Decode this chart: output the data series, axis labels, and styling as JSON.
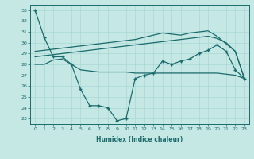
{
  "xlabel": "Humidex (Indice chaleur)",
  "ylabel": "",
  "background_color": "#c5e8e5",
  "line_color": "#1a6b6b",
  "grid_color": "#a8d8d4",
  "xlim": [
    -0.5,
    23.5
  ],
  "ylim": [
    22.5,
    33.5
  ],
  "yticks": [
    23,
    24,
    25,
    26,
    27,
    28,
    29,
    30,
    31,
    32,
    33
  ],
  "xticks": [
    0,
    1,
    2,
    3,
    4,
    5,
    6,
    7,
    8,
    9,
    10,
    11,
    12,
    13,
    14,
    15,
    16,
    17,
    18,
    19,
    20,
    21,
    22,
    23
  ],
  "lines": [
    {
      "x": [
        0,
        1,
        2,
        3,
        4,
        5,
        6,
        7,
        8,
        9,
        10,
        11,
        12,
        13,
        14,
        15,
        16,
        17,
        18,
        19,
        20,
        21,
        22,
        23
      ],
      "y": [
        33,
        30.5,
        28.7,
        28.7,
        28.0,
        25.7,
        24.2,
        24.2,
        24.0,
        22.8,
        23.0,
        26.7,
        27.0,
        27.2,
        28.3,
        28.0,
        28.3,
        28.5,
        29.0,
        29.3,
        29.8,
        29.2,
        27.5,
        26.7
      ],
      "marker": "+",
      "markersize": 3.5,
      "linewidth": 0.9,
      "linestyle": "-"
    },
    {
      "x": [
        0,
        1,
        2,
        3,
        4,
        5,
        6,
        7,
        8,
        9,
        10,
        11,
        12,
        13,
        14,
        15,
        16,
        17,
        18,
        19,
        20,
        21,
        22,
        23
      ],
      "y": [
        28.0,
        28.0,
        28.4,
        28.5,
        28.0,
        27.5,
        27.4,
        27.3,
        27.3,
        27.3,
        27.3,
        27.2,
        27.2,
        27.2,
        27.2,
        27.2,
        27.2,
        27.2,
        27.2,
        27.2,
        27.2,
        27.1,
        27.0,
        26.7
      ],
      "marker": null,
      "markersize": 0,
      "linewidth": 0.9,
      "linestyle": "-"
    },
    {
      "x": [
        0,
        1,
        2,
        3,
        4,
        5,
        6,
        7,
        8,
        9,
        10,
        11,
        12,
        13,
        14,
        15,
        16,
        17,
        18,
        19,
        20,
        21,
        22,
        23
      ],
      "y": [
        28.7,
        28.8,
        28.9,
        29.0,
        29.1,
        29.2,
        29.3,
        29.4,
        29.5,
        29.6,
        29.7,
        29.8,
        29.9,
        30.0,
        30.1,
        30.2,
        30.3,
        30.4,
        30.5,
        30.6,
        30.4,
        30.0,
        29.2,
        26.7
      ],
      "marker": null,
      "markersize": 0,
      "linewidth": 0.9,
      "linestyle": "-"
    },
    {
      "x": [
        0,
        1,
        2,
        3,
        4,
        5,
        6,
        7,
        8,
        9,
        10,
        11,
        12,
        13,
        14,
        15,
        16,
        17,
        18,
        19,
        20,
        21,
        22,
        23
      ],
      "y": [
        29.2,
        29.3,
        29.4,
        29.5,
        29.6,
        29.7,
        29.8,
        29.9,
        30.0,
        30.1,
        30.2,
        30.3,
        30.5,
        30.7,
        30.9,
        30.8,
        30.7,
        30.9,
        31.0,
        31.1,
        30.6,
        29.9,
        29.2,
        26.7
      ],
      "marker": null,
      "markersize": 0,
      "linewidth": 0.9,
      "linestyle": "-"
    }
  ]
}
